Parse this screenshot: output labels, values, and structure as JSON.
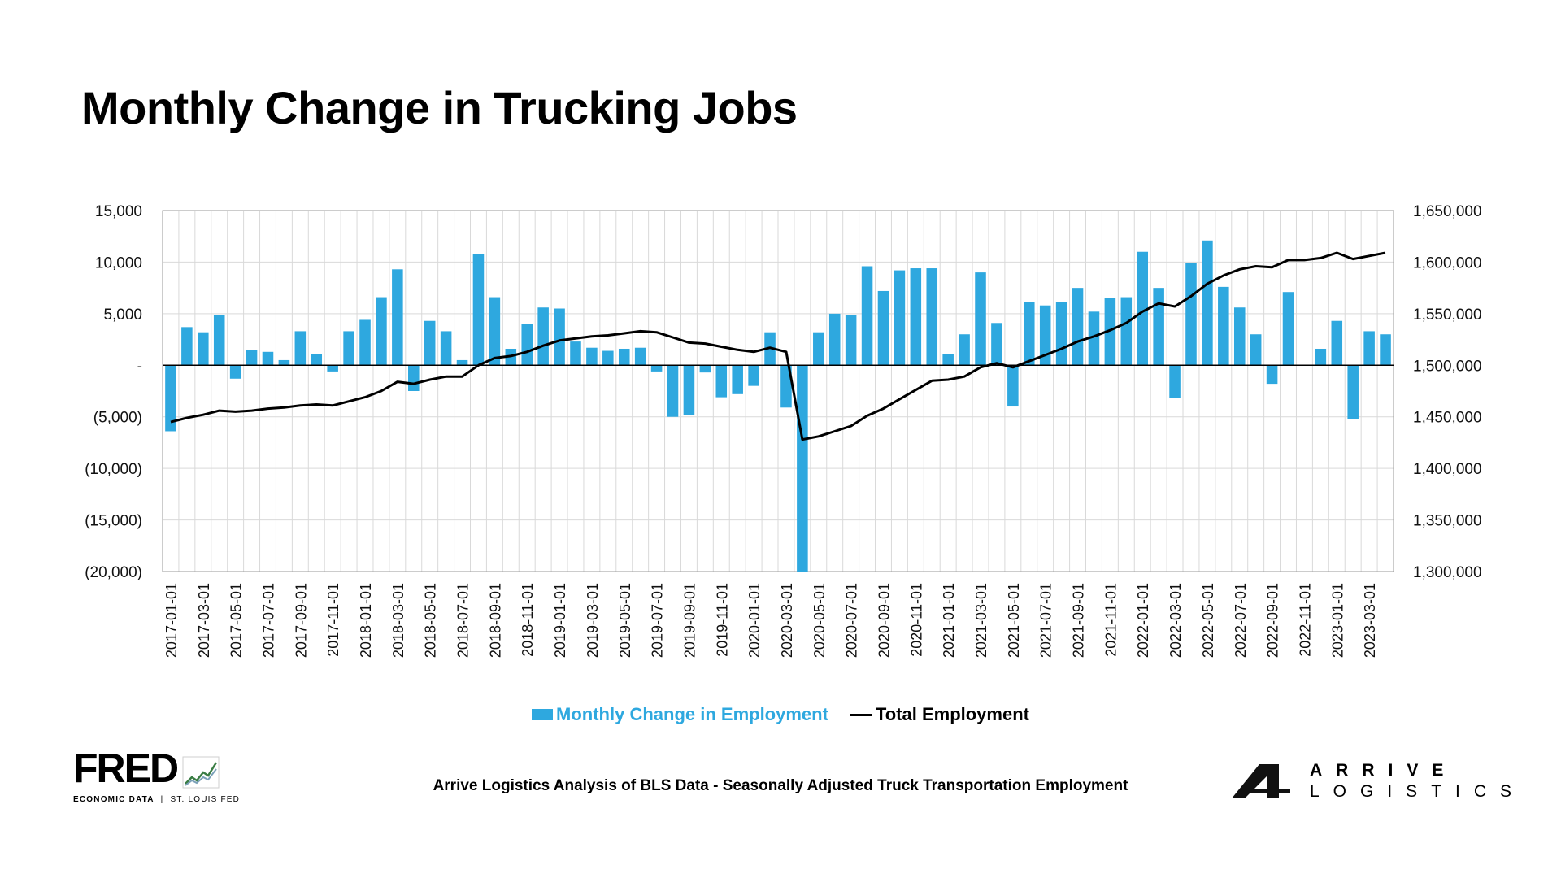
{
  "title": "Monthly Change in Trucking Jobs",
  "legend": {
    "bar_label": "Monthly Change in Employment",
    "line_label": "Total Employment"
  },
  "source_note": "Arrive Logistics Analysis of BLS Data - Seasonally Adjusted Truck Transportation Employment",
  "fred_logo": {
    "word": "FRED",
    "sub_left": "ECONOMIC DATA",
    "sub_sep": "|",
    "sub_right": "ST. LOUIS FED"
  },
  "arrive_logo": {
    "line1": "ARRIVE",
    "line2": "LOGISTICS"
  },
  "colors": {
    "bar": "#2ea8df",
    "line": "#000000",
    "grid": "#d9d9d9"
  },
  "chart_data": {
    "type": "bar",
    "title": "Monthly Change in Trucking Jobs",
    "categories": [
      "2017-01-01",
      "2017-02-01",
      "2017-03-01",
      "2017-04-01",
      "2017-05-01",
      "2017-06-01",
      "2017-07-01",
      "2017-08-01",
      "2017-09-01",
      "2017-10-01",
      "2017-11-01",
      "2017-12-01",
      "2018-01-01",
      "2018-02-01",
      "2018-03-01",
      "2018-04-01",
      "2018-05-01",
      "2018-06-01",
      "2018-07-01",
      "2018-08-01",
      "2018-09-01",
      "2018-10-01",
      "2018-11-01",
      "2018-12-01",
      "2019-01-01",
      "2019-02-01",
      "2019-03-01",
      "2019-04-01",
      "2019-05-01",
      "2019-06-01",
      "2019-07-01",
      "2019-08-01",
      "2019-09-01",
      "2019-10-01",
      "2019-11-01",
      "2019-12-01",
      "2020-01-01",
      "2020-02-01",
      "2020-03-01",
      "2020-04-01",
      "2020-05-01",
      "2020-06-01",
      "2020-07-01",
      "2020-08-01",
      "2020-09-01",
      "2020-10-01",
      "2020-11-01",
      "2020-12-01",
      "2021-01-01",
      "2021-02-01",
      "2021-03-01",
      "2021-04-01",
      "2021-05-01",
      "2021-06-01",
      "2021-07-01",
      "2021-08-01",
      "2021-09-01",
      "2021-10-01",
      "2021-11-01",
      "2021-12-01",
      "2022-01-01",
      "2022-02-01",
      "2022-03-01",
      "2022-04-01",
      "2022-05-01",
      "2022-06-01",
      "2022-07-01",
      "2022-08-01",
      "2022-09-01",
      "2022-10-01",
      "2022-11-01",
      "2022-12-01",
      "2023-01-01",
      "2023-02-01",
      "2023-03-01",
      "2023-04-01"
    ],
    "label_every": 2,
    "series": [
      {
        "name": "Monthly Change in Employment",
        "type": "bar",
        "axis": "left",
        "values": [
          -6400,
          3700,
          3200,
          4900,
          -1300,
          1500,
          1300,
          500,
          3300,
          1100,
          -600,
          3300,
          4400,
          6600,
          9300,
          -2500,
          4300,
          3300,
          500,
          10800,
          6600,
          1600,
          4000,
          5600,
          5500,
          2300,
          1700,
          1400,
          1600,
          1700,
          -600,
          -5000,
          -4800,
          -700,
          -3100,
          -2800,
          -2000,
          3200,
          -4100,
          -20000,
          3200,
          5000,
          4900,
          9600,
          7200,
          9200,
          9400,
          9400,
          1100,
          3000,
          9000,
          4100,
          -4000,
          6100,
          5800,
          6100,
          7500,
          5200,
          6500,
          6600,
          11000,
          7500,
          -3200,
          9900,
          12100,
          7600,
          5600,
          3000,
          -1800,
          7100,
          0,
          1600,
          4300,
          -5200,
          3300,
          3000
        ]
      },
      {
        "name": "Total Employment",
        "type": "line",
        "axis": "right",
        "values": [
          1445000,
          1449000,
          1452000,
          1456000,
          1455000,
          1456000,
          1458000,
          1459000,
          1461000,
          1462000,
          1461000,
          1465000,
          1469000,
          1475000,
          1484000,
          1482000,
          1486000,
          1489000,
          1489000,
          1500000,
          1507000,
          1509000,
          1513000,
          1519000,
          1524000,
          1526000,
          1528000,
          1529000,
          1531000,
          1533000,
          1532000,
          1527000,
          1522000,
          1521000,
          1518000,
          1515000,
          1513000,
          1517000,
          1513000,
          1428000,
          1431000,
          1436000,
          1441000,
          1451000,
          1458000,
          1467000,
          1476000,
          1485000,
          1486000,
          1489000,
          1498000,
          1502000,
          1498000,
          1504000,
          1510000,
          1516000,
          1523000,
          1528000,
          1534000,
          1541000,
          1552000,
          1560000,
          1557000,
          1567000,
          1579000,
          1587000,
          1593000,
          1596000,
          1595000,
          1602000,
          1602000,
          1604000,
          1609000,
          1603000,
          1606000,
          1609000
        ]
      }
    ],
    "left_axis": {
      "ylim": [
        -20000,
        15000
      ],
      "ticks": [
        15000,
        10000,
        5000,
        0,
        -5000,
        -10000,
        -15000,
        -20000
      ],
      "tick_labels": [
        "15,000",
        "10,000",
        "5,000",
        "-",
        "(5,000)",
        "(10,000)",
        "(15,000)",
        "(20,000)"
      ]
    },
    "right_axis": {
      "ylim": [
        1300000,
        1650000
      ],
      "ticks": [
        1650000,
        1600000,
        1550000,
        1500000,
        1450000,
        1400000,
        1350000,
        1300000
      ],
      "tick_labels": [
        "1,650,000",
        "1,600,000",
        "1,550,000",
        "1,500,000",
        "1,450,000",
        "1,400,000",
        "1,350,000",
        "1,300,000"
      ]
    },
    "grid": true,
    "legend_position": "bottom-center"
  }
}
